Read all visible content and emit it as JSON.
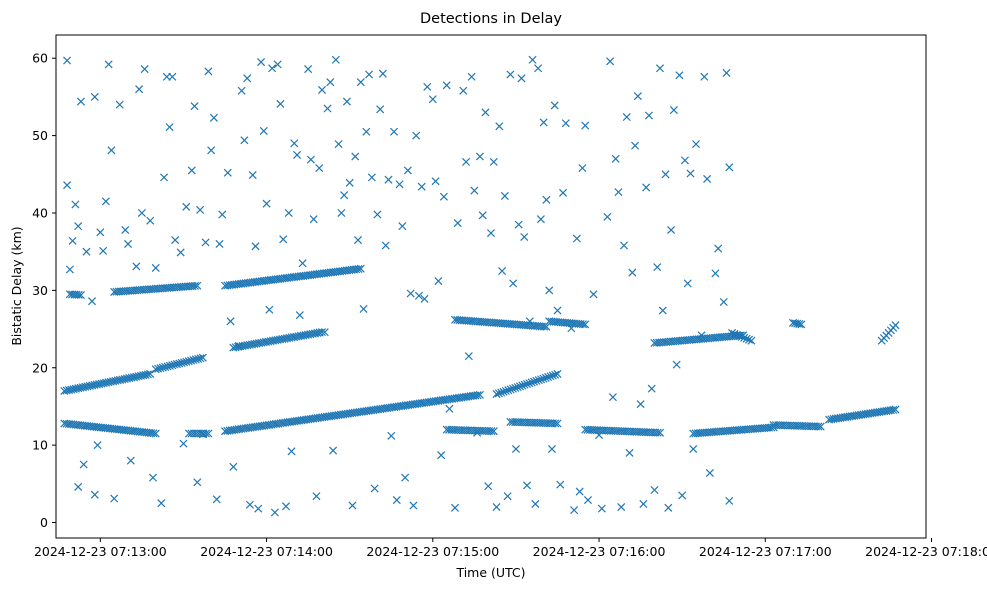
{
  "chart_data": {
    "type": "scatter",
    "title": "Detections in Delay",
    "xlabel": "Time (UTC)",
    "ylabel": "Bistatic Delay (km)",
    "x_type": "datetime",
    "xlim": [
      "2024-12-23 07:12:44",
      "2024-12-23 07:17:58"
    ],
    "ylim": [
      -2,
      63
    ],
    "x_ticks": [
      "2024-12-23 07:13:00",
      "2024-12-23 07:14:00",
      "2024-12-23 07:15:00",
      "2024-12-23 07:16:00",
      "2024-12-23 07:17:00",
      "2024-12-23 07:18:00"
    ],
    "y_ticks": [
      0,
      10,
      20,
      30,
      40,
      50,
      60
    ],
    "grid": false,
    "marker": "x",
    "color": "#1f77b4",
    "series": [
      {
        "points": [
          [
            "07:12:48",
            43.6
          ],
          [
            "07:12:48",
            59.7
          ],
          [
            "07:12:49",
            32.7
          ],
          [
            "07:12:50",
            36.4
          ],
          [
            "07:12:51",
            41.1
          ],
          [
            "07:12:52",
            38.3
          ],
          [
            "07:12:52",
            4.6
          ],
          [
            "07:12:53",
            54.4
          ],
          [
            "07:12:54",
            7.5
          ],
          [
            "07:12:55",
            35.0
          ],
          [
            "07:12:57",
            28.6
          ],
          [
            "07:12:58",
            55.0
          ],
          [
            "07:12:58",
            3.6
          ],
          [
            "07:12:59",
            10.0
          ],
          [
            "07:13:00",
            37.5
          ],
          [
            "07:13:01",
            35.1
          ],
          [
            "07:13:02",
            41.5
          ],
          [
            "07:13:03",
            59.2
          ],
          [
            "07:13:04",
            48.1
          ],
          [
            "07:13:05",
            3.1
          ],
          [
            "07:13:07",
            54.0
          ],
          [
            "07:13:09",
            37.8
          ],
          [
            "07:13:10",
            36.0
          ],
          [
            "07:13:11",
            8.0
          ],
          [
            "07:13:13",
            33.1
          ],
          [
            "07:13:14",
            56.0
          ],
          [
            "07:13:15",
            40.0
          ],
          [
            "07:13:16",
            58.6
          ],
          [
            "07:13:18",
            39.0
          ],
          [
            "07:13:19",
            5.8
          ],
          [
            "07:13:20",
            32.9
          ],
          [
            "07:13:22",
            2.5
          ],
          [
            "07:13:23",
            44.6
          ],
          [
            "07:13:24",
            57.6
          ],
          [
            "07:13:25",
            51.1
          ],
          [
            "07:13:26",
            57.6
          ],
          [
            "07:13:27",
            36.5
          ],
          [
            "07:13:29",
            34.9
          ],
          [
            "07:13:30",
            10.2
          ],
          [
            "07:13:31",
            40.8
          ],
          [
            "07:13:33",
            45.5
          ],
          [
            "07:13:34",
            53.8
          ],
          [
            "07:13:35",
            5.2
          ],
          [
            "07:13:36",
            40.4
          ],
          [
            "07:13:37",
            11.4
          ],
          [
            "07:13:38",
            36.2
          ],
          [
            "07:13:39",
            58.3
          ],
          [
            "07:13:40",
            48.1
          ],
          [
            "07:13:41",
            52.3
          ],
          [
            "07:13:42",
            3.0
          ],
          [
            "07:13:43",
            36.0
          ],
          [
            "07:13:44",
            39.8
          ],
          [
            "07:13:46",
            45.2
          ],
          [
            "07:13:47",
            26.0
          ],
          [
            "07:13:48",
            7.2
          ],
          [
            "07:13:50",
            22.8
          ],
          [
            "07:13:51",
            55.8
          ],
          [
            "07:13:52",
            49.4
          ],
          [
            "07:13:53",
            57.4
          ],
          [
            "07:13:54",
            2.3
          ],
          [
            "07:13:55",
            44.9
          ],
          [
            "07:13:56",
            35.7
          ],
          [
            "07:13:57",
            1.8
          ],
          [
            "07:13:58",
            59.5
          ],
          [
            "07:13:59",
            50.6
          ],
          [
            "07:14:00",
            41.2
          ],
          [
            "07:14:01",
            27.5
          ],
          [
            "07:14:02",
            58.7
          ],
          [
            "07:14:03",
            1.3
          ],
          [
            "07:14:04",
            59.2
          ],
          [
            "07:14:05",
            54.1
          ],
          [
            "07:14:06",
            36.6
          ],
          [
            "07:14:07",
            2.1
          ],
          [
            "07:14:08",
            40.0
          ],
          [
            "07:14:09",
            9.2
          ],
          [
            "07:14:10",
            49.0
          ],
          [
            "07:14:11",
            47.5
          ],
          [
            "07:14:12",
            26.8
          ],
          [
            "07:14:13",
            33.5
          ],
          [
            "07:14:15",
            58.6
          ],
          [
            "07:14:16",
            46.9
          ],
          [
            "07:14:17",
            39.2
          ],
          [
            "07:14:18",
            3.4
          ],
          [
            "07:14:19",
            45.8
          ],
          [
            "07:14:20",
            55.9
          ],
          [
            "07:14:21",
            24.6
          ],
          [
            "07:14:22",
            53.5
          ],
          [
            "07:14:23",
            56.9
          ],
          [
            "07:14:24",
            9.3
          ],
          [
            "07:14:25",
            59.8
          ],
          [
            "07:14:26",
            48.9
          ],
          [
            "07:14:27",
            40.0
          ],
          [
            "07:14:28",
            42.3
          ],
          [
            "07:14:29",
            54.4
          ],
          [
            "07:14:30",
            43.9
          ],
          [
            "07:14:31",
            2.2
          ],
          [
            "07:14:32",
            47.3
          ],
          [
            "07:14:33",
            36.5
          ],
          [
            "07:14:34",
            56.9
          ],
          [
            "07:14:35",
            27.6
          ],
          [
            "07:14:36",
            50.5
          ],
          [
            "07:14:37",
            57.9
          ],
          [
            "07:14:38",
            44.6
          ],
          [
            "07:14:39",
            4.4
          ],
          [
            "07:14:40",
            39.8
          ],
          [
            "07:14:41",
            53.4
          ],
          [
            "07:14:42",
            58.0
          ],
          [
            "07:14:43",
            35.8
          ],
          [
            "07:14:44",
            44.3
          ],
          [
            "07:14:45",
            11.2
          ],
          [
            "07:14:46",
            50.5
          ],
          [
            "07:14:47",
            2.9
          ],
          [
            "07:14:48",
            43.7
          ],
          [
            "07:14:49",
            38.3
          ],
          [
            "07:14:50",
            5.8
          ],
          [
            "07:14:51",
            45.5
          ],
          [
            "07:14:52",
            29.6
          ],
          [
            "07:14:53",
            2.2
          ],
          [
            "07:14:54",
            50.0
          ],
          [
            "07:14:55",
            29.3
          ],
          [
            "07:14:56",
            43.4
          ],
          [
            "07:14:57",
            28.9
          ],
          [
            "07:14:58",
            56.3
          ],
          [
            "07:15:00",
            54.7
          ],
          [
            "07:15:01",
            44.1
          ],
          [
            "07:15:02",
            31.2
          ],
          [
            "07:15:03",
            8.7
          ],
          [
            "07:15:04",
            42.1
          ],
          [
            "07:15:05",
            56.5
          ],
          [
            "07:15:06",
            14.7
          ],
          [
            "07:15:08",
            1.9
          ],
          [
            "07:15:09",
            38.7
          ],
          [
            "07:15:11",
            55.8
          ],
          [
            "07:15:12",
            46.6
          ],
          [
            "07:15:13",
            21.5
          ],
          [
            "07:15:14",
            57.6
          ],
          [
            "07:15:15",
            42.9
          ],
          [
            "07:15:16",
            11.6
          ],
          [
            "07:15:17",
            47.3
          ],
          [
            "07:15:18",
            39.7
          ],
          [
            "07:15:19",
            53.0
          ],
          [
            "07:15:20",
            4.7
          ],
          [
            "07:15:21",
            37.4
          ],
          [
            "07:15:22",
            46.6
          ],
          [
            "07:15:23",
            2.0
          ],
          [
            "07:15:24",
            51.2
          ],
          [
            "07:15:25",
            32.5
          ],
          [
            "07:15:26",
            42.2
          ],
          [
            "07:15:27",
            3.4
          ],
          [
            "07:15:28",
            57.9
          ],
          [
            "07:15:29",
            30.9
          ],
          [
            "07:15:30",
            9.5
          ],
          [
            "07:15:31",
            38.5
          ],
          [
            "07:15:32",
            57.4
          ],
          [
            "07:15:33",
            36.9
          ],
          [
            "07:15:34",
            4.8
          ],
          [
            "07:15:35",
            26.0
          ],
          [
            "07:15:36",
            59.8
          ],
          [
            "07:15:37",
            2.4
          ],
          [
            "07:15:38",
            58.7
          ],
          [
            "07:15:39",
            39.2
          ],
          [
            "07:15:40",
            51.7
          ],
          [
            "07:15:41",
            41.7
          ],
          [
            "07:15:42",
            30.0
          ],
          [
            "07:15:43",
            9.5
          ],
          [
            "07:15:44",
            53.9
          ],
          [
            "07:15:45",
            27.4
          ],
          [
            "07:15:46",
            4.9
          ],
          [
            "07:15:47",
            42.6
          ],
          [
            "07:15:48",
            51.6
          ],
          [
            "07:15:50",
            25.1
          ],
          [
            "07:15:51",
            1.6
          ],
          [
            "07:15:52",
            36.7
          ],
          [
            "07:15:53",
            4.0
          ],
          [
            "07:15:54",
            45.8
          ],
          [
            "07:15:55",
            51.3
          ],
          [
            "07:15:56",
            2.9
          ],
          [
            "07:15:58",
            29.5
          ],
          [
            "07:16:00",
            11.3
          ],
          [
            "07:16:01",
            1.8
          ],
          [
            "07:16:03",
            39.5
          ],
          [
            "07:16:04",
            59.6
          ],
          [
            "07:16:05",
            16.2
          ],
          [
            "07:16:06",
            47.0
          ],
          [
            "07:16:07",
            42.7
          ],
          [
            "07:16:08",
            2.0
          ],
          [
            "07:16:09",
            35.8
          ],
          [
            "07:16:10",
            52.4
          ],
          [
            "07:16:11",
            9.0
          ],
          [
            "07:16:12",
            32.3
          ],
          [
            "07:16:13",
            48.7
          ],
          [
            "07:16:14",
            55.1
          ],
          [
            "07:16:15",
            15.3
          ],
          [
            "07:16:16",
            2.4
          ],
          [
            "07:16:17",
            43.3
          ],
          [
            "07:16:18",
            52.6
          ],
          [
            "07:16:19",
            17.3
          ],
          [
            "07:16:20",
            4.2
          ],
          [
            "07:16:21",
            33.0
          ],
          [
            "07:16:22",
            58.7
          ],
          [
            "07:16:23",
            27.4
          ],
          [
            "07:16:24",
            45.0
          ],
          [
            "07:16:25",
            1.9
          ],
          [
            "07:16:26",
            37.8
          ],
          [
            "07:16:27",
            53.3
          ],
          [
            "07:16:28",
            20.4
          ],
          [
            "07:16:29",
            57.8
          ],
          [
            "07:16:30",
            3.5
          ],
          [
            "07:16:31",
            46.8
          ],
          [
            "07:16:32",
            30.9
          ],
          [
            "07:16:33",
            45.1
          ],
          [
            "07:16:34",
            9.5
          ],
          [
            "07:16:35",
            48.9
          ],
          [
            "07:16:37",
            24.2
          ],
          [
            "07:16:38",
            57.6
          ],
          [
            "07:16:39",
            44.4
          ],
          [
            "07:16:40",
            6.4
          ],
          [
            "07:16:42",
            32.2
          ],
          [
            "07:16:43",
            35.4
          ],
          [
            "07:16:45",
            28.5
          ],
          [
            "07:16:46",
            58.1
          ],
          [
            "07:16:47",
            2.8
          ],
          [
            "07:16:47",
            45.9
          ]
        ]
      }
    ],
    "tracks": [
      {
        "from": [
          "07:12:47",
          12.8
        ],
        "to": [
          "07:13:20",
          11.5
        ]
      },
      {
        "from": [
          "07:13:32",
          11.5
        ],
        "to": [
          "07:13:39",
          11.5
        ]
      },
      {
        "from": [
          "07:13:45",
          11.8
        ],
        "to": [
          "07:15:17",
          16.5
        ]
      },
      {
        "from": [
          "07:15:05",
          12.0
        ],
        "to": [
          "07:15:22",
          11.8
        ]
      },
      {
        "from": [
          "07:15:23",
          16.6
        ],
        "to": [
          "07:15:45",
          19.2
        ]
      },
      {
        "from": [
          "07:15:28",
          13.0
        ],
        "to": [
          "07:15:45",
          12.8
        ]
      },
      {
        "from": [
          "07:15:55",
          12.0
        ],
        "to": [
          "07:16:22",
          11.6
        ]
      },
      {
        "from": [
          "07:16:34",
          11.5
        ],
        "to": [
          "07:17:03",
          12.3
        ]
      },
      {
        "from": [
          "07:17:03",
          12.6
        ],
        "to": [
          "07:17:20",
          12.4
        ]
      },
      {
        "from": [
          "07:17:23",
          13.3
        ],
        "to": [
          "07:17:47",
          14.6
        ]
      },
      {
        "from": [
          "07:12:47",
          17.0
        ],
        "to": [
          "07:13:18",
          19.2
        ]
      },
      {
        "from": [
          "07:13:20",
          19.8
        ],
        "to": [
          "07:13:37",
          21.3
        ]
      },
      {
        "from": [
          "07:13:48",
          22.6
        ],
        "to": [
          "07:14:20",
          24.6
        ]
      },
      {
        "from": [
          "07:15:08",
          26.2
        ],
        "to": [
          "07:15:41",
          25.3
        ]
      },
      {
        "from": [
          "07:15:42",
          26.0
        ],
        "to": [
          "07:15:55",
          25.6
        ]
      },
      {
        "from": [
          "07:16:20",
          23.2
        ],
        "to": [
          "07:16:52",
          24.2
        ]
      },
      {
        "from": [
          "07:16:48",
          24.5
        ],
        "to": [
          "07:16:55",
          23.5
        ]
      },
      {
        "from": [
          "07:17:10",
          25.8
        ],
        "to": [
          "07:17:13",
          25.6
        ]
      },
      {
        "from": [
          "07:17:42",
          23.5
        ],
        "to": [
          "07:17:47",
          25.5
        ]
      },
      {
        "from": [
          "07:12:49",
          29.5
        ],
        "to": [
          "07:12:53",
          29.4
        ]
      },
      {
        "from": [
          "07:13:05",
          29.8
        ],
        "to": [
          "07:13:35",
          30.6
        ]
      },
      {
        "from": [
          "07:13:45",
          30.6
        ],
        "to": [
          "07:14:34",
          32.8
        ]
      }
    ]
  }
}
